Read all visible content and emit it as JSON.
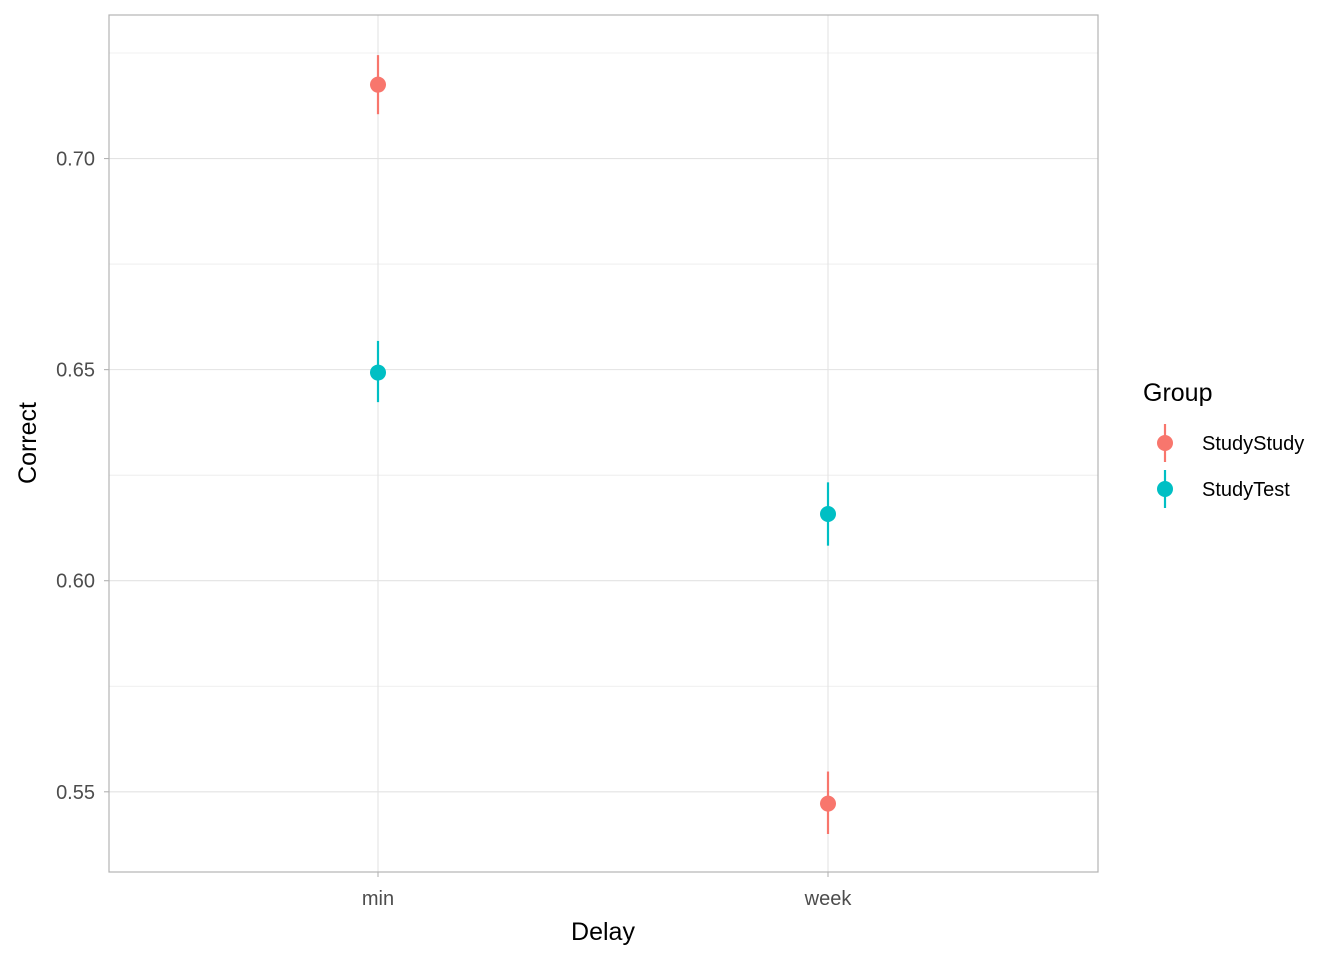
{
  "chart_data": {
    "type": "scatter",
    "xlabel": "Delay",
    "ylabel": "Correct",
    "categories": [
      "min",
      "week"
    ],
    "ylim": [
      0.531,
      0.734
    ],
    "y_ticks": [
      "0.55",
      "0.60",
      "0.65",
      "0.70"
    ],
    "y_tick_values": [
      0.55,
      0.6,
      0.65,
      0.7
    ],
    "grid": true,
    "legend": {
      "title": "Group",
      "position": "right"
    },
    "series": [
      {
        "name": "StudyStudy",
        "color": "#F8766D",
        "values": [
          0.7175,
          0.5472
        ],
        "ymin": [
          0.7105,
          0.54
        ],
        "ymax": [
          0.7245,
          0.5548
        ]
      },
      {
        "name": "StudyTest",
        "color": "#00BFC4",
        "values": [
          0.6493,
          0.6158
        ],
        "ymin": [
          0.6423,
          0.6083
        ],
        "ymax": [
          0.6568,
          0.6233
        ]
      }
    ]
  }
}
